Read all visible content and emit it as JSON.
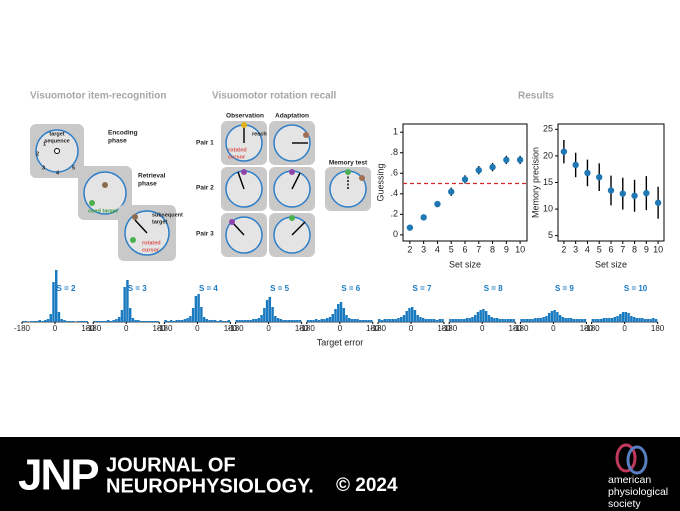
{
  "sections": {
    "item_recognition": "Visuomotor item-recognition",
    "rotation_recall": "Visuomotor rotation recall",
    "results": "Results"
  },
  "item_recognition": {
    "target_sequence": [
      "target",
      "sequence"
    ],
    "encoding_phase": [
      "Encoding",
      "phase"
    ],
    "retrieval_phase": [
      "Retrieval",
      "phase"
    ],
    "cued_target": "cued target",
    "subsequent_target": [
      "subsequent",
      "target"
    ],
    "rotated_cursor": [
      "rotated",
      "cursor"
    ],
    "sequence_numbers": [
      "1",
      "2",
      "3",
      "4",
      "5"
    ]
  },
  "rotation_recall": {
    "observation": "Observation",
    "adaptation": "Adaptation",
    "memory_test": "Memory test",
    "reach": "reach",
    "rotated_cursor": [
      "rotated",
      "cursor"
    ],
    "pairs": [
      "Pair 1",
      "Pair 2",
      "Pair 3"
    ]
  },
  "chart_data": [
    {
      "type": "scatter",
      "xlabel": "Set size",
      "ylabel": "Guessing",
      "color": "#1f77b4",
      "x": [
        2,
        3,
        4,
        5,
        6,
        7,
        8,
        9,
        10
      ],
      "values": [
        0.07,
        0.17,
        0.3,
        0.42,
        0.54,
        0.63,
        0.66,
        0.73,
        0.73
      ],
      "errors": [
        0.02,
        0.03,
        0.03,
        0.04,
        0.04,
        0.04,
        0.04,
        0.04,
        0.04
      ],
      "xlim": [
        1.5,
        10.5
      ],
      "xticks": [
        2,
        3,
        4,
        5,
        6,
        7,
        8,
        9,
        10
      ],
      "ylim": [
        -0.06,
        1.08
      ],
      "yticks": [
        0,
        {
          "value": 0.2,
          "label": ".2"
        },
        {
          "value": 0.4,
          "label": ".4"
        },
        {
          "value": 0.6,
          "label": ".6"
        },
        {
          "value": 0.8,
          "label": ".8"
        },
        1
      ],
      "reference_line": {
        "value": 0.5,
        "color": "#d62728"
      }
    },
    {
      "type": "scatter",
      "xlabel": "Set size",
      "ylabel": "Memory precision",
      "color": "#1f77b4",
      "x": [
        2,
        3,
        4,
        5,
        6,
        7,
        8,
        9,
        10
      ],
      "values": [
        20.8,
        18.3,
        16.8,
        16.0,
        13.5,
        12.9,
        12.5,
        13.0,
        11.2
      ],
      "errors": [
        2.2,
        2.3,
        2.5,
        2.6,
        2.8,
        3.0,
        3.0,
        3.2,
        3.0
      ],
      "xlim": [
        1.5,
        10.5
      ],
      "xticks": [
        2,
        3,
        4,
        5,
        6,
        7,
        8,
        9,
        10
      ],
      "ylim": [
        4,
        26
      ],
      "yticks": [
        5,
        10,
        15,
        20,
        25
      ]
    },
    {
      "type": "histogram",
      "title": "S = 2",
      "color": "#1a7ac0",
      "xlim": [
        -180,
        180
      ],
      "xticks": [
        -180,
        0,
        180
      ],
      "bins": [
        -180,
        -165,
        -150,
        -135,
        -120,
        -105,
        -90,
        -75,
        -60,
        -45,
        -30,
        -15,
        0,
        15,
        30,
        45,
        60,
        75,
        90,
        105,
        120,
        135,
        150,
        165,
        180
      ],
      "values": [
        1,
        1,
        0,
        1,
        1,
        1,
        2,
        1,
        2,
        3,
        8,
        40,
        52,
        10,
        3,
        2,
        1,
        1,
        1,
        0,
        1,
        1,
        1,
        1
      ]
    },
    {
      "type": "histogram",
      "title": "S = 3",
      "color": "#1a7ac0",
      "xlim": [
        -180,
        180
      ],
      "xticks": [
        -180,
        0,
        180
      ],
      "bins": [
        -180,
        -165,
        -150,
        -135,
        -120,
        -105,
        -90,
        -75,
        -60,
        -45,
        -30,
        -15,
        0,
        15,
        30,
        45,
        60,
        75,
        90,
        105,
        120,
        135,
        150,
        165,
        180
      ],
      "values": [
        1,
        1,
        1,
        1,
        1,
        2,
        1,
        2,
        3,
        5,
        12,
        35,
        42,
        14,
        4,
        2,
        2,
        1,
        1,
        1,
        1,
        1,
        1,
        1
      ]
    },
    {
      "type": "histogram",
      "title": "S = 4",
      "color": "#1a7ac0",
      "xlim": [
        -180,
        180
      ],
      "xticks": [
        -180,
        0,
        180
      ],
      "bins": [
        -180,
        -165,
        -150,
        -135,
        -120,
        -105,
        -90,
        -75,
        -60,
        -45,
        -30,
        -15,
        0,
        15,
        30,
        45,
        60,
        75,
        90,
        105,
        120,
        135,
        150,
        165,
        180
      ],
      "values": [
        2,
        1,
        2,
        1,
        2,
        2,
        2,
        3,
        4,
        6,
        14,
        26,
        28,
        15,
        5,
        3,
        2,
        2,
        2,
        1,
        2,
        1,
        1,
        2
      ]
    },
    {
      "type": "histogram",
      "title": "S = 5",
      "color": "#1a7ac0",
      "xlim": [
        -180,
        180
      ],
      "xticks": [
        -180,
        0,
        180
      ],
      "bins": [
        -180,
        -165,
        -150,
        -135,
        -120,
        -105,
        -90,
        -75,
        -60,
        -45,
        -30,
        -15,
        0,
        15,
        30,
        45,
        60,
        75,
        90,
        105,
        120,
        135,
        150,
        165,
        180
      ],
      "values": [
        2,
        2,
        2,
        2,
        2,
        2,
        3,
        3,
        4,
        7,
        14,
        22,
        25,
        15,
        6,
        4,
        3,
        2,
        2,
        2,
        2,
        2,
        2,
        2
      ]
    },
    {
      "type": "histogram",
      "title": "S = 6",
      "color": "#1a7ac0",
      "xlim": [
        -180,
        180
      ],
      "xticks": [
        -180,
        0,
        180
      ],
      "bins": [
        -180,
        -165,
        -150,
        -135,
        -120,
        -105,
        -90,
        -75,
        -60,
        -45,
        -30,
        -15,
        0,
        15,
        30,
        45,
        60,
        75,
        90,
        105,
        120,
        135,
        150,
        165,
        180
      ],
      "values": [
        2,
        2,
        2,
        3,
        2,
        3,
        3,
        4,
        5,
        8,
        13,
        18,
        20,
        14,
        7,
        4,
        3,
        3,
        3,
        2,
        2,
        2,
        2,
        2
      ]
    },
    {
      "type": "histogram",
      "title": "S = 7",
      "color": "#1a7ac0",
      "xlim": [
        -180,
        180
      ],
      "xticks": [
        -180,
        0,
        180
      ],
      "bins": [
        -180,
        -165,
        -150,
        -135,
        -120,
        -105,
        -90,
        -75,
        -60,
        -45,
        -30,
        -15,
        0,
        15,
        30,
        45,
        60,
        75,
        90,
        105,
        120,
        135,
        150,
        165,
        180
      ],
      "values": [
        3,
        2,
        3,
        3,
        3,
        3,
        3,
        4,
        5,
        7,
        11,
        14,
        15,
        12,
        7,
        5,
        4,
        3,
        3,
        3,
        3,
        2,
        3,
        3
      ]
    },
    {
      "type": "histogram",
      "title": "S = 8",
      "color": "#1a7ac0",
      "xlim": [
        -180,
        180
      ],
      "xticks": [
        -180,
        0,
        180
      ],
      "bins": [
        -180,
        -165,
        -150,
        -135,
        -120,
        -105,
        -90,
        -75,
        -60,
        -45,
        -30,
        -15,
        0,
        15,
        30,
        45,
        60,
        75,
        90,
        105,
        120,
        135,
        150,
        165,
        180
      ],
      "values": [
        3,
        3,
        3,
        3,
        3,
        3,
        4,
        4,
        5,
        7,
        10,
        12,
        13,
        11,
        7,
        5,
        4,
        4,
        3,
        3,
        3,
        3,
        3,
        3
      ]
    },
    {
      "type": "histogram",
      "title": "S = 9",
      "color": "#1a7ac0",
      "xlim": [
        -180,
        180
      ],
      "xticks": [
        -180,
        0,
        180
      ],
      "bins": [
        -180,
        -165,
        -150,
        -135,
        -120,
        -105,
        -90,
        -75,
        -60,
        -45,
        -30,
        -15,
        0,
        15,
        30,
        45,
        60,
        75,
        90,
        105,
        120,
        135,
        150,
        165,
        180
      ],
      "values": [
        3,
        3,
        3,
        3,
        3,
        4,
        4,
        4,
        5,
        6,
        9,
        11,
        12,
        10,
        7,
        5,
        4,
        4,
        4,
        3,
        3,
        3,
        3,
        3
      ]
    },
    {
      "type": "histogram",
      "title": "S = 10",
      "color": "#1a7ac0",
      "xlim": [
        -180,
        180
      ],
      "xticks": [
        -180,
        0,
        180
      ],
      "bins": [
        -180,
        -165,
        -150,
        -135,
        -120,
        -105,
        -90,
        -75,
        -60,
        -45,
        -30,
        -15,
        0,
        15,
        30,
        45,
        60,
        75,
        90,
        105,
        120,
        135,
        150,
        165,
        180
      ],
      "values": [
        3,
        3,
        3,
        3,
        4,
        4,
        4,
        4,
        5,
        6,
        8,
        10,
        10,
        9,
        6,
        5,
        4,
        4,
        4,
        3,
        3,
        3,
        4,
        3
      ]
    }
  ],
  "histograms_xlabel": "Target error",
  "footer": {
    "jnp": "JNP",
    "journal_line1": "JOURNAL OF",
    "journal_line2": "NEUROPHYSIOLOGY.",
    "year": "© 2024",
    "society": [
      "american",
      "physiological",
      "society"
    ]
  }
}
